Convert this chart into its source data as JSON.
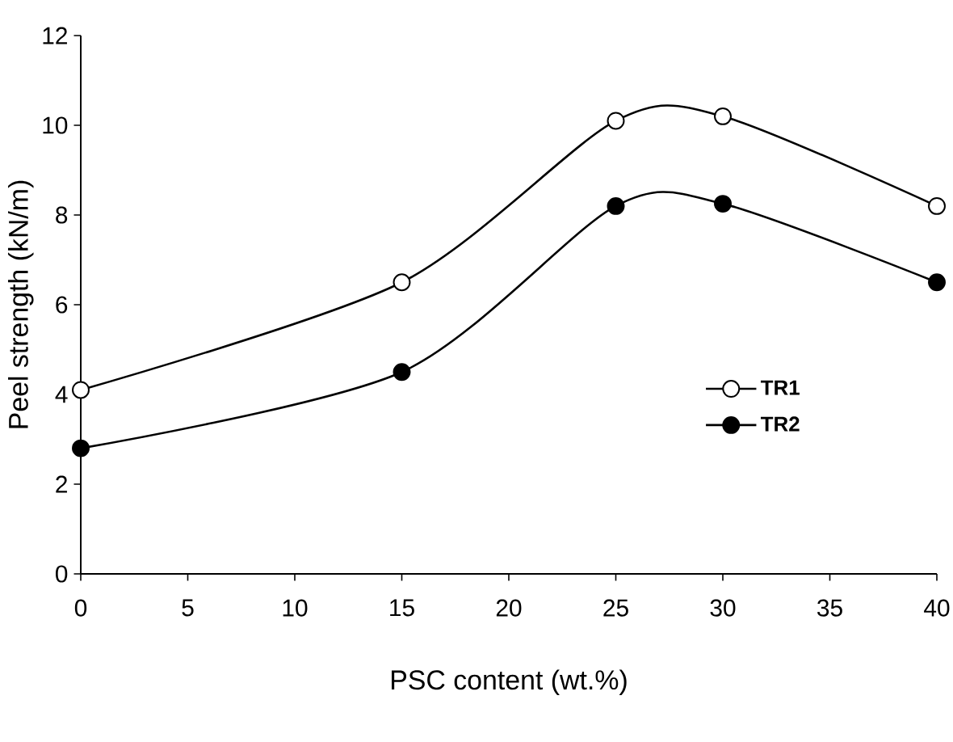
{
  "chart_data": {
    "type": "line",
    "xlabel": "PSC content (wt.%)",
    "ylabel": "Peel strength (kN/m)",
    "x": [
      0,
      15,
      25,
      30,
      40
    ],
    "series": [
      {
        "name": "TR1",
        "color": "#000000",
        "values": [
          4.1,
          6.5,
          10.1,
          10.2,
          8.2
        ]
      },
      {
        "name": "TR2",
        "color": "#000000",
        "values": [
          2.8,
          4.5,
          8.2,
          8.25,
          6.5
        ]
      }
    ],
    "xlim": [
      0,
      40
    ],
    "xticks": [
      0,
      5,
      10,
      15,
      20,
      25,
      30,
      35,
      40
    ],
    "ylim": [
      0,
      12
    ],
    "yticks": [
      0,
      2,
      4,
      6,
      8,
      10,
      12
    ],
    "grid": false,
    "legend": "right",
    "marker": "circle",
    "line_style": "solid"
  }
}
